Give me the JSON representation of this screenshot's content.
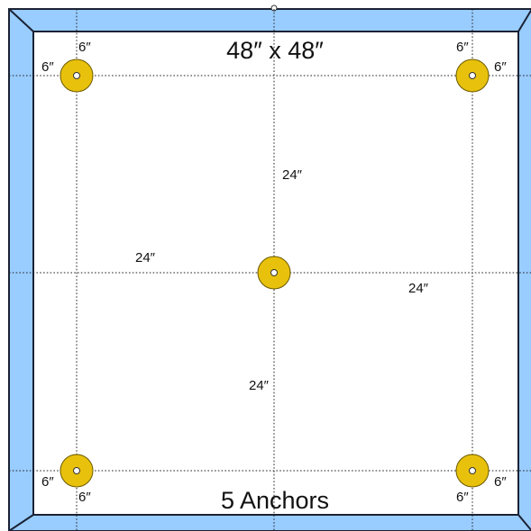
{
  "panel": {
    "size_label": "48″ x 48″",
    "anchor_count_label": "5 Anchors",
    "frame_color": "#99ccff",
    "frame_edge_color": "#1a2233",
    "anchor_color": "#e8c10c",
    "anchor_edge_color": "#6b5a00"
  },
  "anchors": [
    {
      "name": "anchor-top-left",
      "labels": [
        "6″",
        "6″"
      ]
    },
    {
      "name": "anchor-top-right",
      "labels": [
        "6″",
        "6″"
      ]
    },
    {
      "name": "anchor-center",
      "labels": []
    },
    {
      "name": "anchor-bottom-left",
      "labels": [
        "6″",
        "6″"
      ]
    },
    {
      "name": "anchor-bottom-right",
      "labels": [
        "6″",
        "6″"
      ]
    }
  ],
  "center_dimensions": {
    "top": "24″",
    "left": "24″",
    "right": "24″",
    "bottom": "24″"
  }
}
